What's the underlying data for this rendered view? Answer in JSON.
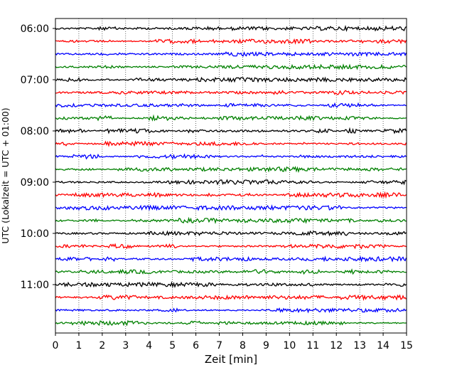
{
  "chart_data": {
    "type": "line",
    "title": "",
    "xlabel": "Zeit  [min]",
    "ylabel": "UTC (Lokalzeit = UTC + 01:00)",
    "xlim": [
      0,
      15
    ],
    "x_ticks": [
      "0",
      "1",
      "2",
      "3",
      "4",
      "5",
      "6",
      "7",
      "8",
      "9",
      "10",
      "11",
      "12",
      "13",
      "14",
      "15"
    ],
    "y_ticks": [
      "06:00",
      "07:00",
      "08:00",
      "09:00",
      "10:00",
      "11:00"
    ],
    "grid": "vertical dotted at each minute",
    "legend": "none",
    "trace_interval_minutes": 15,
    "trace_colors": [
      "#000000",
      "#ff0000",
      "#0000ff",
      "#008000"
    ],
    "traces": [
      {
        "start": "06:00",
        "color": "#000000"
      },
      {
        "start": "06:15",
        "color": "#ff0000"
      },
      {
        "start": "06:30",
        "color": "#0000ff"
      },
      {
        "start": "06:45",
        "color": "#008000"
      },
      {
        "start": "07:00",
        "color": "#000000"
      },
      {
        "start": "07:15",
        "color": "#ff0000"
      },
      {
        "start": "07:30",
        "color": "#0000ff"
      },
      {
        "start": "07:45",
        "color": "#008000"
      },
      {
        "start": "08:00",
        "color": "#000000"
      },
      {
        "start": "08:15",
        "color": "#ff0000"
      },
      {
        "start": "08:30",
        "color": "#0000ff"
      },
      {
        "start": "08:45",
        "color": "#008000"
      },
      {
        "start": "09:00",
        "color": "#000000"
      },
      {
        "start": "09:15",
        "color": "#ff0000"
      },
      {
        "start": "09:30",
        "color": "#0000ff"
      },
      {
        "start": "09:45",
        "color": "#008000"
      },
      {
        "start": "10:00",
        "color": "#000000"
      },
      {
        "start": "10:15",
        "color": "#ff0000"
      },
      {
        "start": "10:30",
        "color": "#0000ff"
      },
      {
        "start": "10:45",
        "color": "#008000"
      },
      {
        "start": "11:00",
        "color": "#000000"
      },
      {
        "start": "11:15",
        "color": "#ff0000"
      },
      {
        "start": "11:30",
        "color": "#0000ff"
      },
      {
        "start": "11:45",
        "color": "#008000"
      }
    ]
  }
}
